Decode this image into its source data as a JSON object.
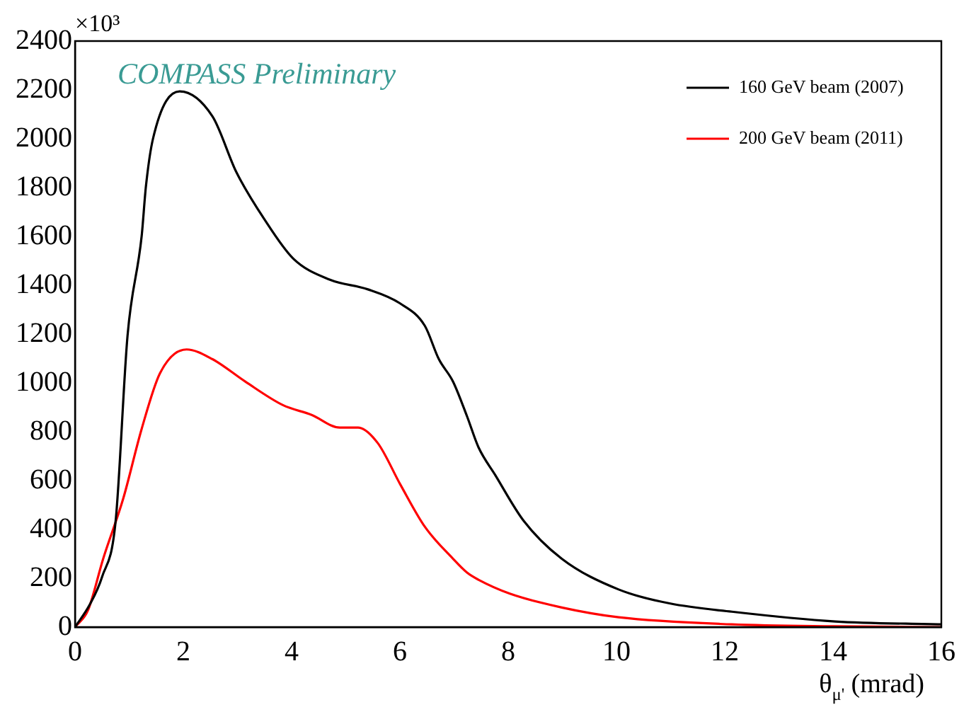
{
  "chart_data": {
    "type": "line",
    "xlabel": "θ$_{μ'}$ (mrad)",
    "annotations": [
      "COMPASS Preliminary",
      "×10³"
    ],
    "xlim": [
      0,
      16
    ],
    "xticks": [
      0,
      2,
      4,
      6,
      8,
      10,
      12,
      14,
      16
    ],
    "ylim": [
      0,
      2400
    ],
    "yticks": [
      0,
      200,
      400,
      600,
      800,
      1000,
      1200,
      1400,
      1600,
      1800,
      2000,
      2200,
      2400
    ],
    "grid": false,
    "legend": "top right",
    "marker": "none",
    "line_style": "solid",
    "series": [
      {
        "name": "160 GeV beam (2007)",
        "color": "#000000",
        "x": [
          0,
          0.27,
          0.5,
          0.75,
          0.97,
          1.23,
          1.31,
          1.44,
          1.93,
          2.54,
          2.98,
          3.5,
          4.03,
          4.7,
          5.41,
          6.0,
          6.46,
          6.72,
          6.98,
          7.24,
          7.45,
          7.76,
          8.29,
          8.99,
          10.04,
          10.98,
          12.13,
          14.04,
          16
        ],
        "values": [
          0,
          91,
          206,
          434,
          1194,
          1600,
          1806,
          2000,
          2194,
          2091,
          1863,
          1669,
          1509,
          1423,
          1383,
          1326,
          1234,
          1097,
          1006,
          863,
          737,
          623,
          434,
          280,
          154,
          97,
          63,
          23,
          11
        ]
      },
      {
        "name": "200 GeV beam (2011)",
        "color": "#ff0000",
        "x": [
          0,
          0.24,
          0.52,
          0.89,
          1.23,
          1.57,
          2.06,
          2.54,
          3.14,
          3.84,
          4.37,
          4.89,
          5.23,
          5.59,
          6.01,
          6.46,
          6.98,
          7.24,
          7.45,
          8.03,
          8.99,
          10.04,
          12.13,
          14,
          16
        ],
        "values": [
          0,
          69,
          280,
          526,
          811,
          1040,
          1137,
          1097,
          1006,
          909,
          869,
          817,
          817,
          754,
          583,
          411,
          280,
          223,
          194,
          137,
          80,
          40,
          11,
          3,
          0
        ]
      }
    ]
  }
}
